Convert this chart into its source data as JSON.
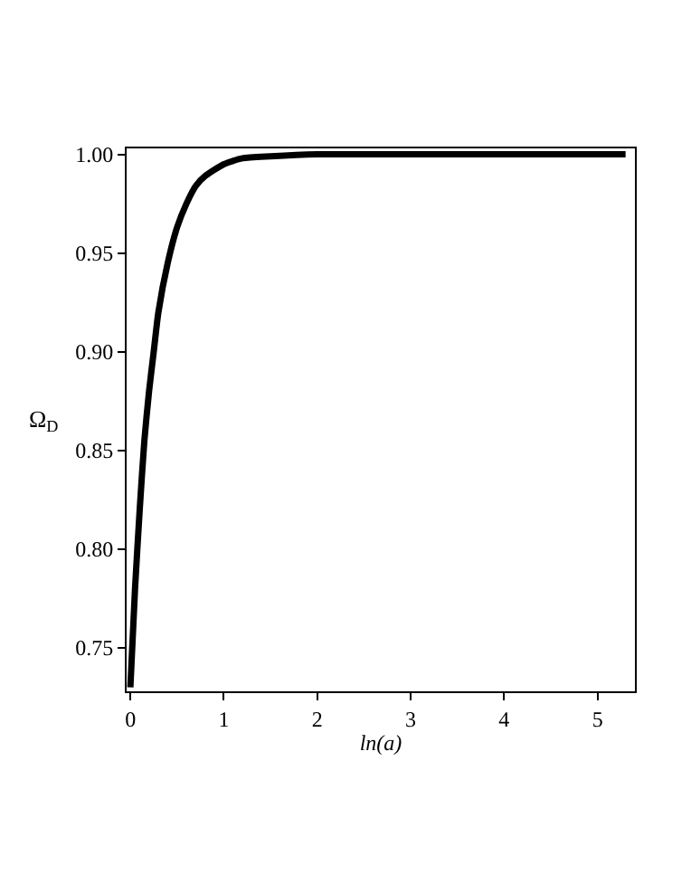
{
  "chart_data": {
    "type": "line",
    "xlabel": "ln(a)",
    "ylabel": "Ω$_{D}$",
    "x": [
      0,
      0.05,
      0.1,
      0.15,
      0.2,
      0.25,
      0.3,
      0.4,
      0.5,
      0.6,
      0.7,
      0.8,
      1.0,
      1.2,
      1.5,
      2.0,
      3.0,
      4.0,
      5.3
    ],
    "series": [
      {
        "color": "#000000",
        "values": [
          0.73,
          0.78,
          0.82,
          0.855,
          0.88,
          0.9,
          0.92,
          0.945,
          0.963,
          0.975,
          0.984,
          0.989,
          0.995,
          0.998,
          0.999,
          1.0,
          1.0,
          1.0,
          1.0
        ]
      }
    ],
    "xlim": [
      -0.04,
      5.4
    ],
    "xticks": [
      0,
      1,
      2,
      3,
      4,
      5
    ],
    "ylim": [
      0.728,
      1.003
    ],
    "yticks": [
      {
        "value": 0.75,
        "label": "0.75"
      },
      {
        "value": 0.8,
        "label": "0.80"
      },
      {
        "value": 0.85,
        "label": "0.85"
      },
      {
        "value": 0.9,
        "label": "0.90"
      },
      {
        "value": 0.95,
        "label": "0.95"
      },
      {
        "value": 1.0,
        "label": "1.00"
      }
    ],
    "marker": "none",
    "line_style": "solid"
  }
}
